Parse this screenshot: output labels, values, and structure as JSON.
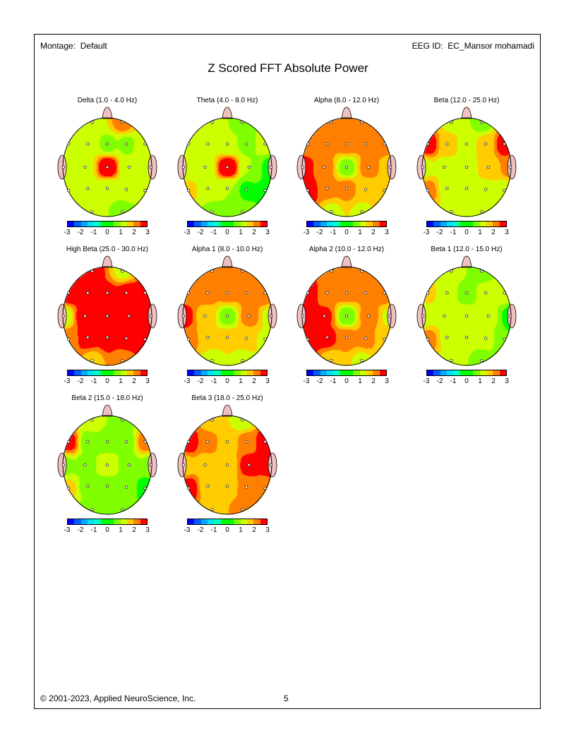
{
  "header": {
    "montage": "Montage:  Default",
    "eeg_id": "EEG ID:  EC_Mansor mohamadi"
  },
  "title": "Z Scored FFT Absolute Power",
  "footer": {
    "copyright": "© 2001-2023, Applied NeuroScience, Inc.",
    "page_number": "5"
  },
  "colorbar": {
    "ticks": [
      "-3",
      "-2",
      "-1",
      "0",
      "1",
      "2",
      "3"
    ],
    "colors": [
      "#0000ff",
      "#0060ff",
      "#00a8ff",
      "#00e0ff",
      "#00ffc0",
      "#00ff00",
      "#00ff00",
      "#80ff00",
      "#ccff00",
      "#ffcc00",
      "#ff8000",
      "#ff0000"
    ]
  },
  "electrodes": [
    "Fp1",
    "Fp2",
    "F7",
    "F3",
    "Fz",
    "F4",
    "F8",
    "T3",
    "C3",
    "Cz",
    "C4",
    "T4",
    "T5",
    "P3",
    "Pz",
    "P4",
    "T6",
    "O1",
    "O2"
  ],
  "maps": [
    {
      "title": "Delta (1.0 - 4.0 Hz)",
      "z": [
        1.3,
        2.2,
        1.3,
        1.2,
        0.9,
        0.9,
        1.5,
        1.2,
        1.3,
        3.0,
        1.0,
        1.2,
        1.2,
        1.2,
        1.1,
        1.2,
        1.2,
        1.2,
        0.8
      ]
    },
    {
      "title": "Theta (4.0 - 8.0 Hz)",
      "z": [
        1.2,
        0.8,
        1.2,
        1.2,
        1.1,
        0.9,
        1.2,
        1.2,
        1.2,
        3.0,
        1.0,
        0.3,
        1.6,
        1.2,
        1.0,
        0.4,
        0.4,
        0.9,
        0.6
      ]
    },
    {
      "title": "Alpha (8.0 - 12.0 Hz)",
      "z": [
        2.2,
        2.2,
        2.2,
        2.2,
        2.2,
        2.2,
        2.2,
        2.8,
        2.2,
        0.8,
        2.2,
        1.7,
        2.8,
        2.2,
        2.2,
        1.7,
        1.7,
        1.4,
        1.4
      ]
    },
    {
      "title": "Beta (12.0 - 25.0 Hz)",
      "z": [
        1.4,
        0.8,
        2.8,
        1.7,
        1.3,
        1.7,
        2.8,
        1.3,
        1.3,
        1.3,
        1.7,
        2.2,
        2.2,
        1.3,
        1.3,
        1.4,
        1.3,
        1.3,
        1.3
      ]
    },
    {
      "title": "High Beta (25.0 - 30.0 Hz)",
      "z": [
        2.7,
        1.4,
        2.8,
        2.8,
        2.6,
        2.8,
        2.8,
        1.2,
        2.8,
        2.8,
        2.8,
        2.8,
        2.3,
        2.8,
        2.8,
        2.8,
        2.8,
        1.8,
        2.2
      ]
    },
    {
      "title": "Alpha 1 (8.0 - 10.0 Hz)",
      "z": [
        2.2,
        2.2,
        2.2,
        2.2,
        2.2,
        2.2,
        2.4,
        2.8,
        1.8,
        0.8,
        2.2,
        1.3,
        2.2,
        1.7,
        1.7,
        1.7,
        1.4,
        1.3,
        1.3
      ]
    },
    {
      "title": "Alpha 2 (10.0 - 12.0 Hz)",
      "z": [
        2.2,
        2.2,
        2.8,
        2.2,
        2.2,
        2.2,
        2.2,
        2.8,
        2.6,
        0.7,
        2.2,
        1.4,
        2.8,
        2.7,
        2.2,
        2.2,
        1.7,
        1.7,
        1.4
      ]
    },
    {
      "title": "Beta 1 (12.0 - 15.0 Hz)",
      "z": [
        1.2,
        0.8,
        1.6,
        1.2,
        0.8,
        1.2,
        1.2,
        1.2,
        1.2,
        1.2,
        1.2,
        0.3,
        2.2,
        1.4,
        1.2,
        1.2,
        0.5,
        1.2,
        0.8
      ]
    },
    {
      "title": "Beta 2 (15.0 - 18.0 Hz)",
      "z": [
        1.2,
        0.8,
        2.7,
        0.8,
        0.8,
        0.8,
        2.2,
        0.8,
        0.8,
        1.3,
        0.8,
        0.8,
        1.6,
        0.8,
        0.8,
        0.8,
        0.3,
        0.8,
        0.8
      ]
    },
    {
      "title": "Beta 3 (18.0 - 25.0 Hz)",
      "z": [
        1.7,
        1.2,
        2.8,
        2.2,
        1.7,
        2.2,
        2.8,
        1.7,
        1.7,
        1.7,
        2.8,
        2.8,
        2.8,
        1.7,
        1.7,
        2.2,
        2.2,
        1.7,
        2.2
      ]
    }
  ]
}
